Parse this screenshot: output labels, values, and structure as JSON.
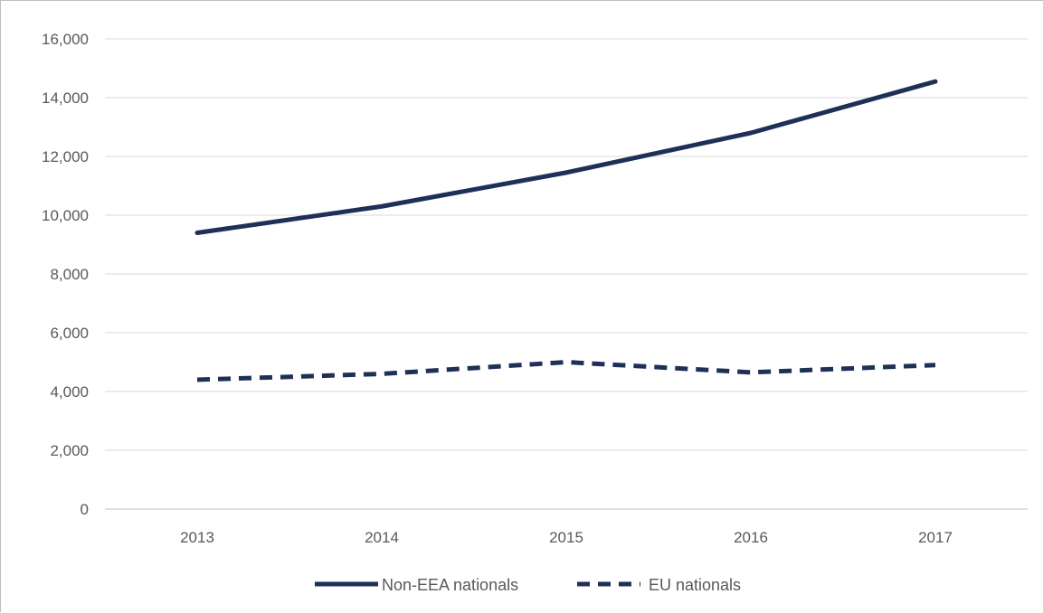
{
  "chart_data": {
    "type": "line",
    "title": "",
    "xlabel": "",
    "ylabel": "",
    "categories": [
      "2013",
      "2014",
      "2015",
      "2016",
      "2017"
    ],
    "ylim": [
      0,
      16000
    ],
    "yticks": [
      "0",
      "2,000",
      "4,000",
      "6,000",
      "8,000",
      "10,000",
      "12,000",
      "14,000",
      "16,000"
    ],
    "ytick_values": [
      0,
      2000,
      4000,
      6000,
      8000,
      10000,
      12000,
      14000,
      16000
    ],
    "grid": true,
    "legend_position": "bottom",
    "series": [
      {
        "name": "Non-EEA nationals",
        "values": [
          9400,
          10300,
          11450,
          12800,
          14550
        ],
        "color": "#1f3057",
        "line_style": "solid"
      },
      {
        "name": "EU nationals",
        "values": [
          4400,
          4600,
          5000,
          4650,
          4900
        ],
        "color": "#1f3057",
        "line_style": "dashed"
      }
    ]
  }
}
